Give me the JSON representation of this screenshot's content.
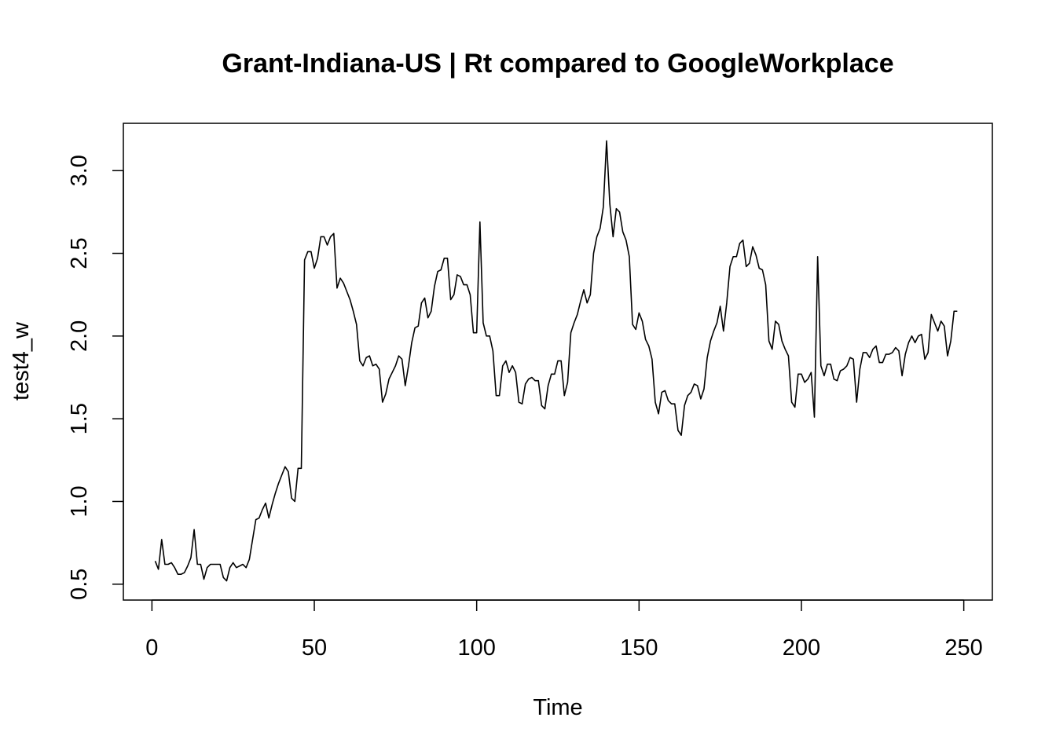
{
  "chart_data": {
    "type": "line",
    "title": "Grant-Indiana-US | Rt compared to GoogleWorkplace",
    "xlabel": "Time",
    "ylabel": "test4_w",
    "xlim": [
      -8.8,
      258.8
    ],
    "ylim": [
      0.404,
      3.286
    ],
    "x_ticks": [
      0,
      50,
      100,
      150,
      200,
      250
    ],
    "y_ticks": [
      0.5,
      1.0,
      1.5,
      2.0,
      2.5,
      3.0
    ],
    "x_tick_labels": [
      "0",
      "50",
      "100",
      "150",
      "200",
      "250"
    ],
    "y_tick_labels": [
      "0.5",
      "1.0",
      "1.5",
      "2.0",
      "2.5",
      "3.0"
    ],
    "grid": false,
    "line_color": "#000000",
    "series": [
      {
        "x": [
          1,
          2,
          3,
          4,
          5,
          6,
          7,
          8,
          9,
          10,
          11,
          12,
          13,
          14,
          15,
          16,
          17,
          18,
          19,
          20,
          21,
          22,
          23,
          24,
          25,
          26,
          27,
          28,
          29,
          30,
          31,
          32,
          33,
          34,
          35,
          36,
          37,
          38,
          39,
          40,
          41,
          42,
          43,
          44,
          45,
          46,
          47,
          48,
          49,
          50,
          51,
          52,
          53,
          54,
          55,
          56,
          57,
          58,
          59,
          60,
          61,
          62,
          63,
          64,
          65,
          66,
          67,
          68,
          69,
          70,
          71,
          72,
          73,
          74,
          75,
          76,
          77,
          78,
          79,
          80,
          81,
          82,
          83,
          84,
          85,
          86,
          87,
          88,
          89,
          90,
          91,
          92,
          93,
          94,
          95,
          96,
          97,
          98,
          99,
          100,
          101,
          102,
          103,
          104,
          105,
          106,
          107,
          108,
          109,
          110,
          111,
          112,
          113,
          114,
          115,
          116,
          117,
          118,
          119,
          120,
          121,
          122,
          123,
          124,
          125,
          126,
          127,
          128,
          129,
          130,
          131,
          132,
          133,
          134,
          135,
          136,
          137,
          138,
          139,
          140,
          141,
          142,
          143,
          144,
          145,
          146,
          147,
          148,
          149,
          150,
          151,
          152,
          153,
          154,
          155,
          156,
          157,
          158,
          159,
          160,
          161,
          162,
          163,
          164,
          165,
          166,
          167,
          168,
          169,
          170,
          171,
          172,
          173,
          174,
          175,
          176,
          177,
          178,
          179,
          180,
          181,
          182,
          183,
          184,
          185,
          186,
          187,
          188,
          189,
          190,
          191,
          192,
          193,
          194,
          195,
          196,
          197,
          198,
          199,
          200,
          201,
          202,
          203,
          204,
          205,
          206,
          207,
          208,
          209,
          210,
          211,
          212,
          213,
          214,
          215,
          216,
          217,
          218,
          219,
          220,
          221,
          222,
          223,
          224,
          225,
          226,
          227,
          228,
          229,
          230,
          231,
          232,
          233,
          234,
          235,
          236,
          237,
          238,
          239,
          240,
          241,
          242,
          243,
          244,
          245,
          246,
          247,
          248
        ],
        "values": [
          0.64,
          0.59,
          0.77,
          0.62,
          0.62,
          0.63,
          0.6,
          0.56,
          0.56,
          0.57,
          0.61,
          0.66,
          0.83,
          0.62,
          0.62,
          0.53,
          0.6,
          0.62,
          0.62,
          0.62,
          0.62,
          0.54,
          0.52,
          0.6,
          0.63,
          0.6,
          0.61,
          0.62,
          0.6,
          0.65,
          0.77,
          0.89,
          0.9,
          0.95,
          0.99,
          0.9,
          0.98,
          1.05,
          1.11,
          1.16,
          1.21,
          1.18,
          1.02,
          1.0,
          1.2,
          1.2,
          2.46,
          2.51,
          2.51,
          2.41,
          2.47,
          2.6,
          2.6,
          2.55,
          2.6,
          2.62,
          2.29,
          2.35,
          2.32,
          2.27,
          2.22,
          2.15,
          2.07,
          1.85,
          1.82,
          1.87,
          1.88,
          1.82,
          1.83,
          1.8,
          1.6,
          1.65,
          1.74,
          1.78,
          1.82,
          1.88,
          1.86,
          1.7,
          1.82,
          1.96,
          2.05,
          2.06,
          2.2,
          2.23,
          2.11,
          2.15,
          2.3,
          2.39,
          2.4,
          2.47,
          2.47,
          2.22,
          2.25,
          2.37,
          2.36,
          2.31,
          2.31,
          2.25,
          2.02,
          2.02,
          2.69,
          2.08,
          2.0,
          2.0,
          1.91,
          1.64,
          1.64,
          1.82,
          1.85,
          1.78,
          1.82,
          1.78,
          1.6,
          1.59,
          1.71,
          1.74,
          1.75,
          1.73,
          1.73,
          1.58,
          1.56,
          1.7,
          1.77,
          1.77,
          1.85,
          1.85,
          1.64,
          1.72,
          2.02,
          2.08,
          2.13,
          2.21,
          2.28,
          2.2,
          2.25,
          2.5,
          2.6,
          2.65,
          2.78,
          3.18,
          2.8,
          2.6,
          2.77,
          2.75,
          2.63,
          2.58,
          2.48,
          2.07,
          2.04,
          2.14,
          2.09,
          1.98,
          1.94,
          1.86,
          1.6,
          1.53,
          1.66,
          1.67,
          1.61,
          1.59,
          1.59,
          1.43,
          1.4,
          1.58,
          1.64,
          1.66,
          1.71,
          1.7,
          1.62,
          1.68,
          1.87,
          1.97,
          2.03,
          2.08,
          2.18,
          2.03,
          2.2,
          2.42,
          2.48,
          2.48,
          2.56,
          2.58,
          2.42,
          2.44,
          2.54,
          2.49,
          2.41,
          2.4,
          2.31,
          1.97,
          1.92,
          2.09,
          2.07,
          1.97,
          1.92,
          1.88,
          1.6,
          1.57,
          1.77,
          1.77,
          1.72,
          1.74,
          1.78,
          1.51,
          2.48,
          1.82,
          1.76,
          1.83,
          1.83,
          1.74,
          1.73,
          1.79,
          1.8,
          1.82,
          1.87,
          1.86,
          1.6,
          1.8,
          1.9,
          1.9,
          1.87,
          1.92,
          1.94,
          1.84,
          1.84,
          1.89,
          1.89,
          1.9,
          1.93,
          1.91,
          1.76,
          1.89,
          1.96,
          2.0,
          1.96,
          2.0,
          2.01,
          1.86,
          1.9,
          2.13,
          2.08,
          2.03,
          2.09,
          2.06,
          1.88,
          1.97,
          2.15,
          2.15
        ]
      }
    ]
  }
}
